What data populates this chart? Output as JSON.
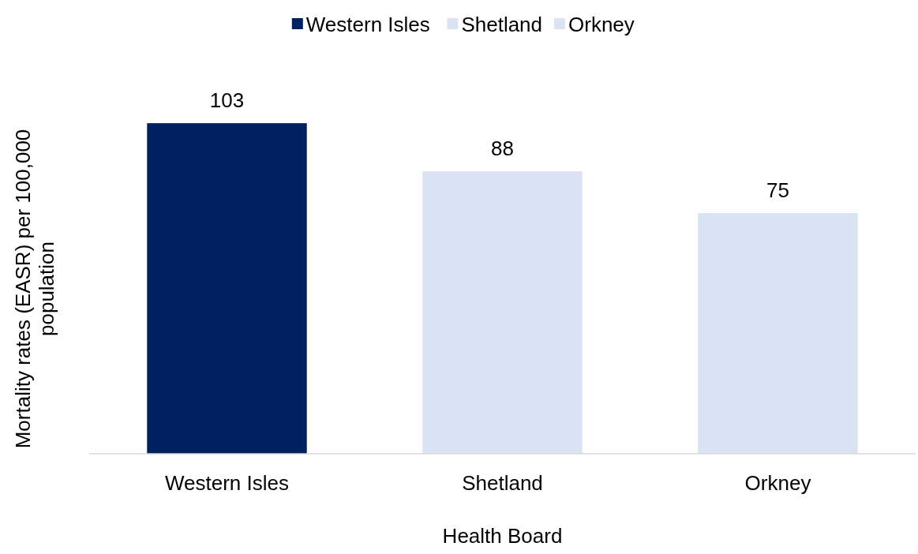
{
  "chart_data": {
    "type": "bar",
    "xlabel": "Health Board",
    "ylabel": "Mortality rates (EASR) per 100,000 population",
    "categories": [
      "Western Isles",
      "Shetland",
      "Orkney"
    ],
    "stacked": true,
    "series": [
      {
        "name": "Western Isles",
        "color": "#002060",
        "values": [
          103,
          null,
          null
        ]
      },
      {
        "name": "Shetland",
        "color": "#dae3f3",
        "values": [
          null,
          88,
          null
        ]
      },
      {
        "name": "Orkney",
        "color": "#dae3f3",
        "values": [
          null,
          null,
          75
        ]
      }
    ],
    "data_labels": true,
    "legend": "top"
  }
}
